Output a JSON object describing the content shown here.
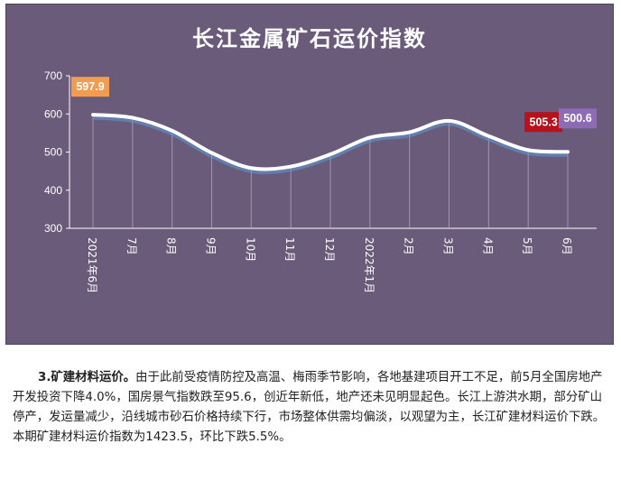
{
  "chart_data": {
    "type": "line",
    "title": "长江金属矿石运价指数",
    "categories": [
      "2021年6月",
      "7月",
      "8月",
      "9月",
      "10月",
      "11月",
      "12月",
      "2022年1月",
      "2月",
      "3月",
      "4月",
      "5月",
      "6月"
    ],
    "values": [
      597.9,
      590,
      556,
      498,
      458,
      462,
      494,
      538,
      552,
      582,
      542,
      505.3,
      500.6
    ],
    "ylim": [
      300,
      700
    ],
    "yticks": [
      "300",
      "400",
      "500",
      "600",
      "700"
    ],
    "grid": false,
    "callouts": [
      {
        "index": 0,
        "text": "597.9",
        "color": "#f39c4f"
      },
      {
        "index": 11,
        "text": "505.3",
        "color": "#b5121b"
      },
      {
        "index": 12,
        "text": "500.6",
        "color": "#8e6bb5"
      }
    ],
    "colors": {
      "background": "#6b5b7b",
      "line": "#ffffff",
      "line_glow": "#5b9bd5",
      "axis": "#ffffff"
    }
  },
  "article": {
    "heading": "3.矿建材料运价。",
    "body": "由于此前受疫情防控及高温、梅雨季节影响，各地基建项目开工不足，前5月全国房地产开发投资下降4.0%，国房景气指数跌至95.6，创近年新低，地产还未见明显起色。长江上游洪水期，部分矿山停产，发运量减少，沿线城市砂石价格持续下行，市场整体供需均偏淡，以观望为主，长江矿建材料运价下跌。本期矿建材料运价指数为1423.5，环比下跌5.5%。"
  }
}
